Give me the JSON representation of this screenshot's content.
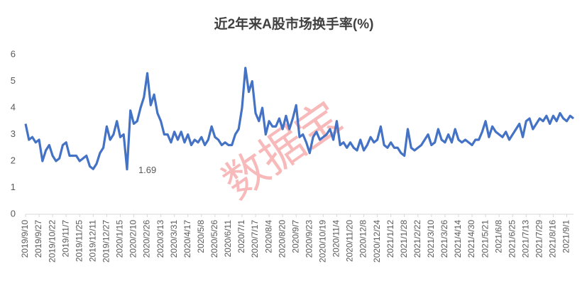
{
  "chart_data": {
    "type": "line",
    "title": "近2年来A股市场换手率(%)",
    "watermark": "数据宝",
    "categories": [
      "2019/9/10",
      null,
      null,
      null,
      "2019/9/27",
      null,
      null,
      null,
      "2019/10/22",
      null,
      null,
      null,
      "2019/11/7",
      null,
      null,
      null,
      "2019/11/25",
      null,
      null,
      null,
      "2019/12/11",
      null,
      null,
      null,
      "2019/12/27",
      null,
      null,
      null,
      "2020/1/15",
      null,
      null,
      null,
      "2020/2/10",
      null,
      null,
      null,
      "2020/2/26",
      null,
      null,
      null,
      "2020/3/13",
      null,
      null,
      null,
      "2020/3/31",
      null,
      null,
      null,
      "2020/4/17",
      null,
      null,
      null,
      "2020/5/8",
      null,
      null,
      null,
      "2020/5/26",
      null,
      null,
      null,
      "2020/6/11",
      null,
      null,
      null,
      "2020/7/1",
      null,
      null,
      null,
      "2020/7/17",
      null,
      null,
      null,
      "2020/8/4",
      null,
      null,
      null,
      "2020/8/20",
      null,
      null,
      null,
      "2020/9/7",
      null,
      null,
      null,
      "2020/9/23",
      null,
      null,
      null,
      "2020/10/19",
      null,
      null,
      null,
      "2020/11/4",
      null,
      null,
      null,
      "2020/11/20",
      null,
      null,
      null,
      "2020/12/8",
      null,
      null,
      null,
      "2020/12/24",
      null,
      null,
      null,
      "2021/1/12",
      null,
      null,
      null,
      "2021/1/28",
      null,
      null,
      null,
      "2021/2/22",
      null,
      null,
      null,
      "2021/3/10",
      null,
      null,
      null,
      "2021/3/26",
      null,
      null,
      null,
      "2021/4/14",
      null,
      null,
      null,
      "2021/4/30",
      null,
      null,
      null,
      "2021/5/21",
      null,
      null,
      null,
      "2021/6/8",
      null,
      null,
      null,
      "2021/6/25",
      null,
      null,
      null,
      "2021/7/13",
      null,
      null,
      null,
      "2021/7/29",
      null,
      null,
      null,
      "2021/8/16",
      null,
      null,
      null,
      "2021/9/1",
      null,
      null
    ],
    "series": [
      {
        "color": "#4472c4",
        "values": [
          3.4,
          2.8,
          2.9,
          2.7,
          2.8,
          2.0,
          2.4,
          2.6,
          2.2,
          2.0,
          2.1,
          2.6,
          2.7,
          2.2,
          2.2,
          2.2,
          2.0,
          2.1,
          2.2,
          1.8,
          1.7,
          1.9,
          2.3,
          2.5,
          3.3,
          2.8,
          3.0,
          3.5,
          2.9,
          3.0,
          1.69,
          3.9,
          3.4,
          3.5,
          4.0,
          4.4,
          5.3,
          4.1,
          4.5,
          3.8,
          3.5,
          3.0,
          3.0,
          2.7,
          3.1,
          2.8,
          3.1,
          2.7,
          3.0,
          2.6,
          2.8,
          2.7,
          2.9,
          2.6,
          2.8,
          3.3,
          2.9,
          2.8,
          2.6,
          2.7,
          2.6,
          2.6,
          3.0,
          3.2,
          4.0,
          5.5,
          4.6,
          5.0,
          3.8,
          3.5,
          4.0,
          3.0,
          3.5,
          3.3,
          3.3,
          3.6,
          3.2,
          3.7,
          3.2,
          3.6,
          4.1,
          2.9,
          3.0,
          2.7,
          2.3,
          2.9,
          3.1,
          2.8,
          2.9,
          3.0,
          3.2,
          2.8,
          3.5,
          2.6,
          2.7,
          2.5,
          2.7,
          2.5,
          2.4,
          2.8,
          2.4,
          2.6,
          2.9,
          2.7,
          2.8,
          3.3,
          2.6,
          2.5,
          2.7,
          2.5,
          2.5,
          2.3,
          2.2,
          3.2,
          2.5,
          2.4,
          2.5,
          2.6,
          2.8,
          3.0,
          2.6,
          2.7,
          3.2,
          2.8,
          2.7,
          3.0,
          2.7,
          3.2,
          2.8,
          2.7,
          2.8,
          2.7,
          2.6,
          2.8,
          2.8,
          3.1,
          3.5,
          2.9,
          3.3,
          3.1,
          3.0,
          2.9,
          3.1,
          2.8,
          3.0,
          3.2,
          3.4,
          2.9,
          3.5,
          3.6,
          3.2,
          3.4,
          3.6,
          3.5,
          3.7,
          3.4,
          3.7,
          3.5,
          3.8,
          3.6,
          3.5,
          3.7,
          3.6
        ]
      }
    ],
    "annotated_point": 30,
    "ylim": [
      0,
      6
    ],
    "yticks": [
      0,
      1,
      2,
      3,
      4,
      5,
      6
    ],
    "grid": false
  }
}
